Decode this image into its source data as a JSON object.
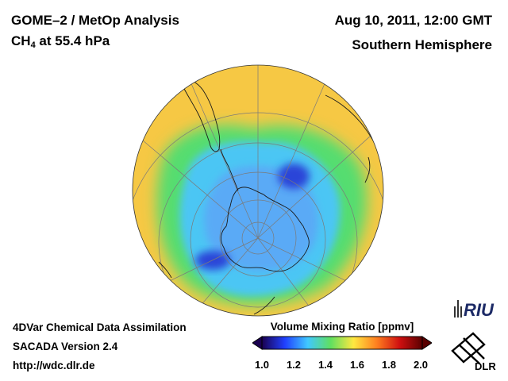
{
  "header": {
    "title": "GOME–2 / MetOp Analysis",
    "species_main": "CH",
    "species_sub": "4",
    "species_rest": " at 55.4 hPa",
    "datetime": "Aug 10, 2011, 12:00 GMT",
    "region": "Southern Hemisphere"
  },
  "footer": {
    "line1": "4DVar Chemical Data Assimilation",
    "line2": "SACADA Version 2.4",
    "line3": "http://wdc.dlr.de"
  },
  "colorbar": {
    "title": "Volume Mixing Ratio [ppmv]",
    "ticks": [
      "1.0",
      "1.2",
      "1.4",
      "1.6",
      "1.8",
      "2.0"
    ],
    "min": 1.0,
    "max": 2.0,
    "colors": [
      "#1a0050",
      "#2040ff",
      "#40c8ff",
      "#60e060",
      "#ffe840",
      "#ff8020",
      "#d01010",
      "#5a0000"
    ]
  },
  "map": {
    "projection": "orthographic",
    "center": "South Pole",
    "field": "CH4 volume mixing ratio",
    "colors": {
      "outer": "#f6c844",
      "collar": "#55dd70",
      "ring": "#4cc6f4",
      "core": "#5aaaf6",
      "minimum": "#2a44d8",
      "coast": "#1a1a1a",
      "grid": "#7a7a7a"
    }
  },
  "logos": {
    "riu": "RIU",
    "dlr": "DLR"
  }
}
